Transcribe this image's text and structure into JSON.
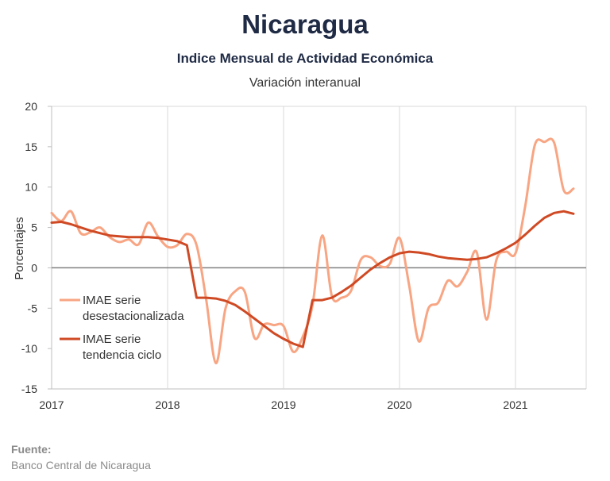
{
  "header": {
    "title": "Nicaragua",
    "subtitle": "Indice Mensual de  Actividad Económica",
    "caption": "Variación interanual"
  },
  "source": {
    "label": "Fuente:",
    "text": "Banco Central de Nicaragua"
  },
  "colors": {
    "series_desest": "#f8a583",
    "series_tendencia": "#cf4a24",
    "zero_line": "#7f7f7f",
    "grid": "#d9d9d9"
  },
  "chart_data": {
    "type": "line",
    "title": "Nicaragua",
    "subtitle": "Indice Mensual de  Actividad Económica",
    "ylabel": "Porcentajes",
    "xlabel": "",
    "ylim": [
      -15,
      20
    ],
    "yticks": [
      20,
      15,
      10,
      5,
      0,
      -5,
      -10,
      -15
    ],
    "xticks": [
      "2017",
      "2018",
      "2019",
      "2020",
      "2021"
    ],
    "x_start": "2017-01",
    "grid": "vertical",
    "legend_position": "lower-left",
    "series": [
      {
        "name": "IMAE serie desestacionalizada",
        "legend_lines": [
          "IMAE serie",
          "desestacionalizada"
        ],
        "values": [
          6.8,
          5.8,
          7.0,
          4.3,
          4.4,
          5.0,
          3.8,
          3.2,
          3.5,
          2.9,
          5.6,
          3.9,
          2.6,
          2.8,
          4.2,
          2.8,
          -4.0,
          -11.8,
          -5.0,
          -2.9,
          -3.0,
          -8.7,
          -7.0,
          -7.1,
          -7.2,
          -10.4,
          -8.5,
          -4.6,
          4.0,
          -3.5,
          -3.7,
          -2.8,
          1.0,
          1.3,
          0.2,
          0.5,
          3.7,
          -2.2,
          -9.1,
          -5.0,
          -4.3,
          -1.6,
          -2.3,
          -0.5,
          1.9,
          -6.4,
          0.9,
          2.0,
          1.8,
          7.6,
          15.2,
          15.6,
          15.5,
          9.6,
          9.8
        ]
      },
      {
        "name": "IMAE serie tendencia ciclo",
        "legend_lines": [
          "IMAE serie",
          "tendencia ciclo"
        ],
        "values": [
          5.6,
          5.7,
          5.4,
          5.0,
          4.6,
          4.3,
          4.0,
          3.9,
          3.8,
          3.8,
          3.8,
          3.7,
          3.5,
          3.3,
          2.8,
          -3.7,
          -3.7,
          -3.8,
          -4.1,
          -4.6,
          -5.4,
          -6.3,
          -7.2,
          -8.1,
          -8.8,
          -9.4,
          -9.8,
          -4.0,
          -4.0,
          -3.7,
          -3.0,
          -2.2,
          -1.2,
          -0.2,
          0.6,
          1.3,
          1.8,
          2.0,
          1.9,
          1.7,
          1.4,
          1.2,
          1.1,
          1.0,
          1.1,
          1.3,
          1.8,
          2.4,
          3.1,
          4.1,
          5.2,
          6.2,
          6.8,
          7.0,
          6.7
        ]
      }
    ]
  }
}
